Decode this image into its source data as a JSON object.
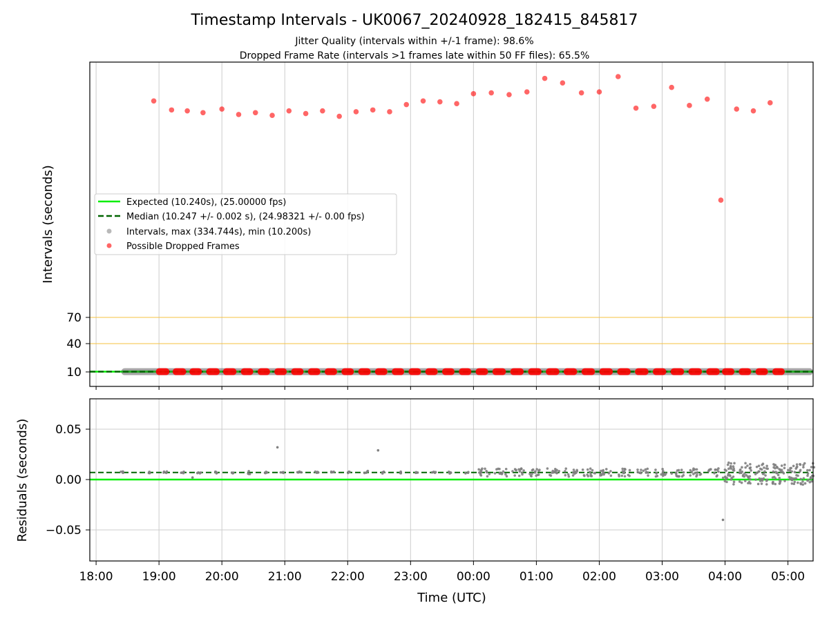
{
  "title": "Timestamp Intervals - UK0067_20240928_182415_845817",
  "subtitle_lines": [
    "Jitter Quality (intervals within +/-1 frame): 98.6%",
    "Dropped Frame Rate (intervals >1 frames late within 50 FF files): 65.5%"
  ],
  "colors": {
    "expected": "#00ee00",
    "median": "#006400",
    "intervals": "#808080",
    "dropped": "#ff0000",
    "threshold": "#f5c040",
    "grid": "#cccccc"
  },
  "chart_data": [
    {
      "type": "scatter",
      "ylabel": "Intervals (seconds)",
      "yticks": [
        10,
        40,
        70
      ],
      "grid": true,
      "legend_position": "center-left",
      "legend": [
        {
          "label": "Expected (10.240s), (25.00000 fps)",
          "marker": "line"
        },
        {
          "label": "Median (10.247 +/- 0.002 s), (24.98321 +/- 0.00 fps)",
          "marker": "dashed"
        },
        {
          "label": "Intervals, max (334.744s), min (10.200s)",
          "marker": "dot-gray"
        },
        {
          "label": "Possible Dropped Frames",
          "marker": "dot-red"
        }
      ],
      "expected_value": 10.24,
      "median_value": 10.247,
      "threshold_lines": [
        40,
        70
      ],
      "time_range_hours": [
        -0.1,
        11.4
      ],
      "interval_band": {
        "value": 10.24,
        "start_hour": 0.4,
        "end_hour": 11.4
      },
      "dropped_frame_points": [
        {
          "t": "18:55",
          "y": 310
        },
        {
          "t": "19:12",
          "y": 300
        },
        {
          "t": "19:27",
          "y": 299
        },
        {
          "t": "19:42",
          "y": 297
        },
        {
          "t": "20:00",
          "y": 301
        },
        {
          "t": "20:16",
          "y": 295
        },
        {
          "t": "20:32",
          "y": 297
        },
        {
          "t": "20:48",
          "y": 294
        },
        {
          "t": "21:04",
          "y": 299
        },
        {
          "t": "21:20",
          "y": 296
        },
        {
          "t": "21:36",
          "y": 299
        },
        {
          "t": "21:52",
          "y": 293
        },
        {
          "t": "22:08",
          "y": 298
        },
        {
          "t": "22:24",
          "y": 300
        },
        {
          "t": "22:40",
          "y": 298
        },
        {
          "t": "22:56",
          "y": 306
        },
        {
          "t": "23:12",
          "y": 310
        },
        {
          "t": "23:28",
          "y": 309
        },
        {
          "t": "23:44",
          "y": 307
        },
        {
          "t": "00:00",
          "y": 318
        },
        {
          "t": "00:17",
          "y": 319
        },
        {
          "t": "00:34",
          "y": 317
        },
        {
          "t": "00:51",
          "y": 320
        },
        {
          "t": "01:08",
          "y": 335
        },
        {
          "t": "01:25",
          "y": 330
        },
        {
          "t": "01:43",
          "y": 319
        },
        {
          "t": "02:00",
          "y": 320
        },
        {
          "t": "02:18",
          "y": 337
        },
        {
          "t": "02:35",
          "y": 302
        },
        {
          "t": "02:52",
          "y": 304
        },
        {
          "t": "03:09",
          "y": 325
        },
        {
          "t": "03:26",
          "y": 305
        },
        {
          "t": "03:43",
          "y": 312
        },
        {
          "t": "03:56",
          "y": 200
        },
        {
          "t": "04:11",
          "y": 301
        },
        {
          "t": "04:27",
          "y": 299
        },
        {
          "t": "04:43",
          "y": 308
        }
      ],
      "dropped_band_clusters": [
        {
          "start": "18:57",
          "end": "19:10"
        },
        {
          "start": "19:13",
          "end": "19:26"
        },
        {
          "start": "19:29",
          "end": "19:41"
        },
        {
          "start": "19:45",
          "end": "19:58"
        },
        {
          "start": "20:01",
          "end": "20:14"
        },
        {
          "start": "20:18",
          "end": "20:30"
        },
        {
          "start": "20:34",
          "end": "20:46"
        },
        {
          "start": "20:50",
          "end": "21:02"
        },
        {
          "start": "21:06",
          "end": "21:18"
        },
        {
          "start": "21:22",
          "end": "21:34"
        },
        {
          "start": "21:38",
          "end": "21:50"
        },
        {
          "start": "21:54",
          "end": "22:06"
        },
        {
          "start": "22:10",
          "end": "22:22"
        },
        {
          "start": "22:26",
          "end": "22:38"
        },
        {
          "start": "22:42",
          "end": "22:54"
        },
        {
          "start": "22:58",
          "end": "23:10"
        },
        {
          "start": "23:14",
          "end": "23:26"
        },
        {
          "start": "23:30",
          "end": "23:42"
        },
        {
          "start": "23:46",
          "end": "23:58"
        },
        {
          "start": "00:02",
          "end": "00:14"
        },
        {
          "start": "00:18",
          "end": "00:31"
        },
        {
          "start": "00:35",
          "end": "00:48"
        },
        {
          "start": "00:52",
          "end": "01:05"
        },
        {
          "start": "01:09",
          "end": "01:22"
        },
        {
          "start": "01:26",
          "end": "01:39"
        },
        {
          "start": "01:43",
          "end": "01:56"
        },
        {
          "start": "02:00",
          "end": "02:13"
        },
        {
          "start": "02:17",
          "end": "02:30"
        },
        {
          "start": "02:34",
          "end": "02:47"
        },
        {
          "start": "02:51",
          "end": "03:04"
        },
        {
          "start": "03:08",
          "end": "03:21"
        },
        {
          "start": "03:25",
          "end": "03:38"
        },
        {
          "start": "03:42",
          "end": "03:55"
        },
        {
          "start": "03:57",
          "end": "04:09"
        },
        {
          "start": "04:13",
          "end": "04:25"
        },
        {
          "start": "04:29",
          "end": "04:41"
        },
        {
          "start": "04:45",
          "end": "04:57"
        }
      ]
    },
    {
      "type": "scatter",
      "xlabel": "Time (UTC)",
      "ylabel": "Residuals (seconds)",
      "ylim": [
        -0.08,
        0.08
      ],
      "yticks": [
        0.05,
        0.0,
        -0.05
      ],
      "ytick_labels": [
        "0.05",
        "0.00",
        "−0.05"
      ],
      "xticks": [
        "18:00",
        "19:00",
        "20:00",
        "21:00",
        "22:00",
        "23:00",
        "00:00",
        "01:00",
        "02:00",
        "03:00",
        "04:00",
        "05:00"
      ],
      "grid": true,
      "expected_residual": 0.0,
      "median_residual": 0.007,
      "residual_clusters": [
        {
          "start": "18:23",
          "end": "18:27",
          "center": 0.007,
          "spread": 0.001,
          "count": 4
        },
        {
          "start": "18:48",
          "end": "18:52",
          "center": 0.007,
          "spread": 0.001,
          "count": 4
        },
        {
          "start": "19:04",
          "end": "19:08",
          "center": 0.007,
          "spread": 0.0015,
          "count": 4
        },
        {
          "start": "19:20",
          "end": "19:24",
          "center": 0.007,
          "spread": 0.001,
          "count": 4
        },
        {
          "start": "19:36",
          "end": "19:40",
          "center": 0.007,
          "spread": 0.0015,
          "count": 4
        },
        {
          "start": "19:52",
          "end": "19:56",
          "center": 0.007,
          "spread": 0.001,
          "count": 4
        },
        {
          "start": "20:08",
          "end": "20:12",
          "center": 0.007,
          "spread": 0.001,
          "count": 4
        },
        {
          "start": "20:24",
          "end": "20:28",
          "center": 0.007,
          "spread": 0.0015,
          "count": 4
        },
        {
          "start": "20:40",
          "end": "20:44",
          "center": 0.007,
          "spread": 0.001,
          "count": 4
        },
        {
          "start": "20:56",
          "end": "21:00",
          "center": 0.007,
          "spread": 0.001,
          "count": 4
        },
        {
          "start": "21:12",
          "end": "21:16",
          "center": 0.007,
          "spread": 0.001,
          "count": 4
        },
        {
          "start": "21:28",
          "end": "21:32",
          "center": 0.007,
          "spread": 0.0015,
          "count": 4
        },
        {
          "start": "21:44",
          "end": "21:48",
          "center": 0.007,
          "spread": 0.001,
          "count": 4
        },
        {
          "start": "22:00",
          "end": "22:04",
          "center": 0.007,
          "spread": 0.001,
          "count": 4
        },
        {
          "start": "22:16",
          "end": "22:20",
          "center": 0.007,
          "spread": 0.0015,
          "count": 4
        },
        {
          "start": "22:32",
          "end": "22:36",
          "center": 0.007,
          "spread": 0.001,
          "count": 4
        },
        {
          "start": "22:48",
          "end": "22:52",
          "center": 0.007,
          "spread": 0.001,
          "count": 4
        },
        {
          "start": "23:04",
          "end": "23:08",
          "center": 0.007,
          "spread": 0.001,
          "count": 4
        },
        {
          "start": "23:20",
          "end": "23:24",
          "center": 0.007,
          "spread": 0.001,
          "count": 4
        },
        {
          "start": "23:36",
          "end": "23:40",
          "center": 0.007,
          "spread": 0.001,
          "count": 4
        },
        {
          "start": "23:52",
          "end": "23:56",
          "center": 0.007,
          "spread": 0.001,
          "count": 4
        },
        {
          "start": "00:04",
          "end": "00:16",
          "center": 0.007,
          "spread": 0.004,
          "count": 14
        },
        {
          "start": "00:20",
          "end": "00:32",
          "center": 0.007,
          "spread": 0.004,
          "count": 14
        },
        {
          "start": "00:37",
          "end": "00:49",
          "center": 0.007,
          "spread": 0.004,
          "count": 14
        },
        {
          "start": "00:53",
          "end": "01:05",
          "center": 0.007,
          "spread": 0.004,
          "count": 14
        },
        {
          "start": "01:10",
          "end": "01:22",
          "center": 0.007,
          "spread": 0.004,
          "count": 14
        },
        {
          "start": "01:27",
          "end": "01:39",
          "center": 0.007,
          "spread": 0.004,
          "count": 14
        },
        {
          "start": "01:44",
          "end": "01:56",
          "center": 0.007,
          "spread": 0.004,
          "count": 14
        },
        {
          "start": "02:01",
          "end": "02:13",
          "center": 0.007,
          "spread": 0.004,
          "count": 14
        },
        {
          "start": "02:18",
          "end": "02:30",
          "center": 0.007,
          "spread": 0.004,
          "count": 14
        },
        {
          "start": "02:35",
          "end": "02:47",
          "center": 0.007,
          "spread": 0.004,
          "count": 14
        },
        {
          "start": "02:52",
          "end": "03:04",
          "center": 0.007,
          "spread": 0.004,
          "count": 14
        },
        {
          "start": "03:09",
          "end": "03:21",
          "center": 0.007,
          "spread": 0.004,
          "count": 14
        },
        {
          "start": "03:26",
          "end": "03:38",
          "center": 0.007,
          "spread": 0.004,
          "count": 14
        },
        {
          "start": "03:43",
          "end": "03:55",
          "center": 0.007,
          "spread": 0.004,
          "count": 12
        },
        {
          "start": "03:58",
          "end": "04:09",
          "center": 0.006,
          "spread": 0.011,
          "count": 30
        },
        {
          "start": "04:13",
          "end": "04:25",
          "center": 0.006,
          "spread": 0.011,
          "count": 30
        },
        {
          "start": "04:29",
          "end": "04:41",
          "center": 0.006,
          "spread": 0.011,
          "count": 30
        },
        {
          "start": "04:45",
          "end": "05:25",
          "center": 0.006,
          "spread": 0.011,
          "count": 90
        }
      ],
      "residual_outliers": [
        {
          "t": "20:53",
          "y": 0.032
        },
        {
          "t": "22:29",
          "y": 0.029
        },
        {
          "t": "19:32",
          "y": 0.002
        },
        {
          "t": "03:58",
          "y": -0.04
        }
      ]
    }
  ]
}
